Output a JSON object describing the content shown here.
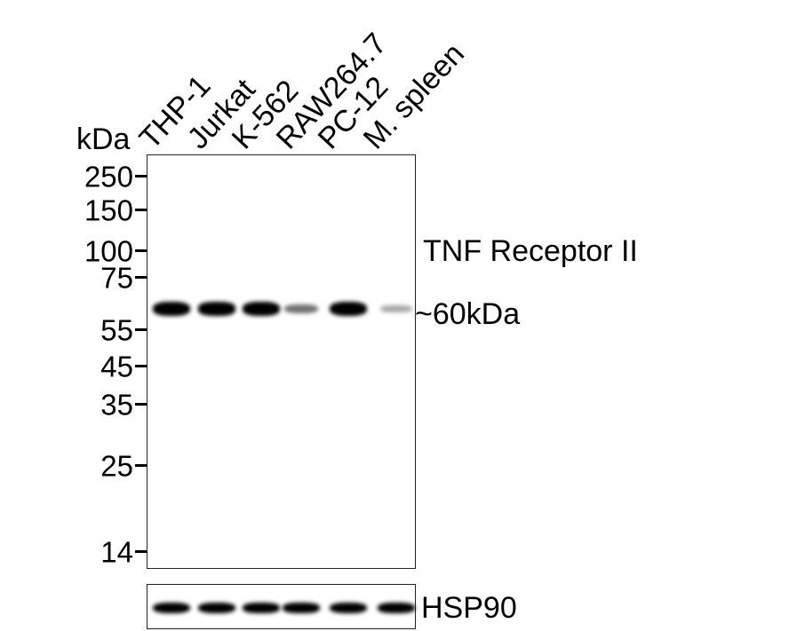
{
  "kda_label": "kDa",
  "lanes": [
    "THP-1",
    "Jurkat",
    "K-562",
    "RAW264.7",
    "PC-12",
    "M. spleen"
  ],
  "markers": [
    "250",
    "150",
    "100",
    "75",
    "55",
    "45",
    "35",
    "25",
    "14"
  ],
  "target": {
    "name": "TNF Receptor II",
    "size": "~60kDa",
    "band_intensity": [
      0.95,
      0.9,
      0.95,
      0.35,
      1.0,
      0.15
    ]
  },
  "loading_control": {
    "name": "HSP90",
    "band_intensity": [
      0.95,
      0.95,
      0.9,
      0.9,
      0.95,
      0.85
    ]
  }
}
